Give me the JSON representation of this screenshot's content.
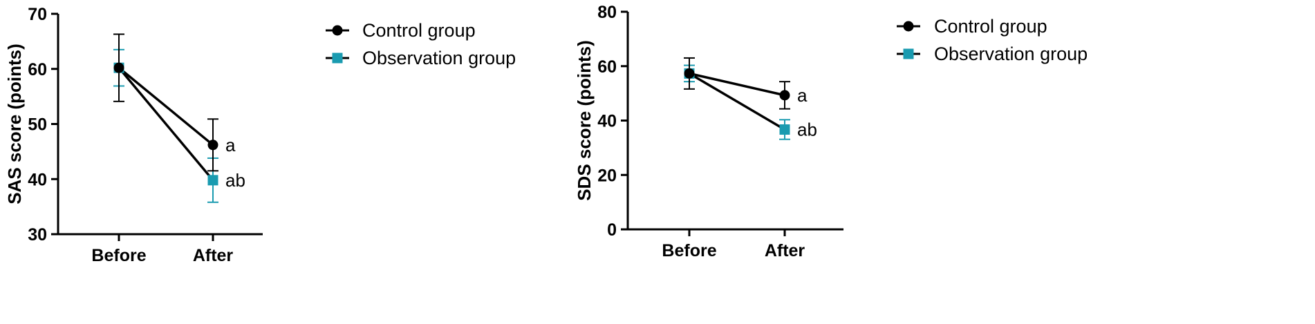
{
  "chart_data": [
    {
      "type": "line",
      "title": "",
      "xlabel": "",
      "ylabel": "SAS score (points)",
      "categories": [
        "Before",
        "After"
      ],
      "ylim": [
        30,
        70
      ],
      "yticks": [
        30,
        40,
        50,
        60,
        70
      ],
      "grid": false,
      "legend_position": "right",
      "series": [
        {
          "name": "Control group",
          "marker": "circle",
          "color": "#000000",
          "errorbar_color": "#000000",
          "values": [
            60.2,
            46.2
          ],
          "error": [
            6.1,
            4.7
          ]
        },
        {
          "name": "Observation group",
          "marker": "square",
          "color": "#1a9bb0",
          "errorbar_color": "#1a9bb0",
          "values": [
            60.2,
            39.8
          ],
          "error": [
            3.3,
            4.0
          ]
        }
      ],
      "annotations": [
        {
          "text": "a",
          "series": 0,
          "category": 1
        },
        {
          "text": "ab",
          "series": 1,
          "category": 1
        }
      ]
    },
    {
      "type": "line",
      "title": "",
      "xlabel": "",
      "ylabel": "SDS score (points)",
      "categories": [
        "Before",
        "After"
      ],
      "ylim": [
        0,
        80
      ],
      "yticks": [
        0,
        20,
        40,
        60,
        80
      ],
      "grid": false,
      "legend_position": "right",
      "series": [
        {
          "name": "Control group",
          "marker": "circle",
          "color": "#000000",
          "errorbar_color": "#000000",
          "values": [
            57.3,
            49.3
          ],
          "error": [
            5.7,
            5.0
          ]
        },
        {
          "name": "Observation group",
          "marker": "square",
          "color": "#1a9bb0",
          "errorbar_color": "#1a9bb0",
          "values": [
            57.3,
            36.7
          ],
          "error": [
            3.0,
            3.6
          ]
        }
      ],
      "annotations": [
        {
          "text": "a",
          "series": 0,
          "category": 1
        },
        {
          "text": "ab",
          "series": 1,
          "category": 1
        }
      ]
    }
  ]
}
